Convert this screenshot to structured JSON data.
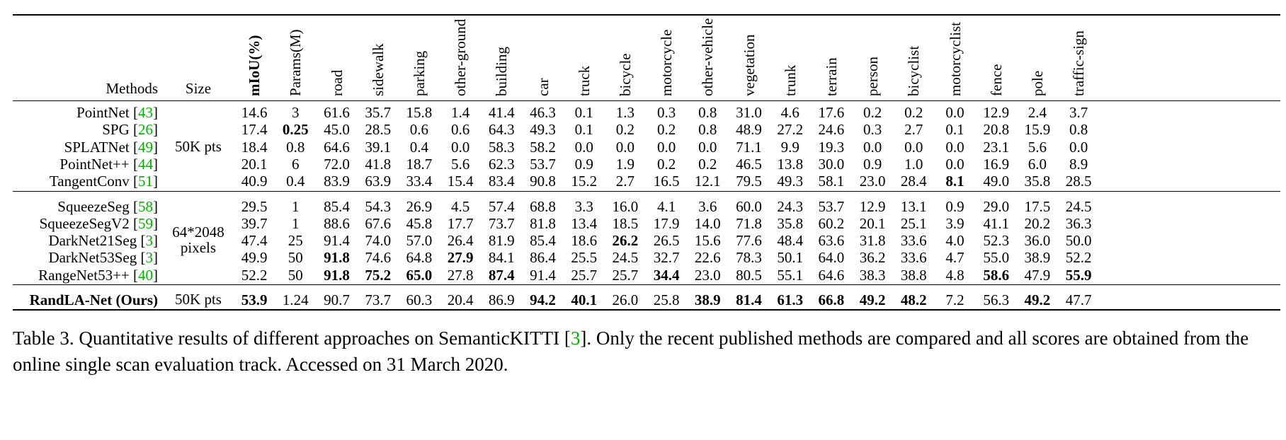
{
  "table": {
    "header": {
      "methods": "Methods",
      "size": "Size",
      "columns": [
        "mIoU(%)",
        "Params(M)",
        "road",
        "sidewalk",
        "parking",
        "other-ground",
        "building",
        "car",
        "truck",
        "bicycle",
        "motorcycle",
        "other-vehicle",
        "vegetation",
        "trunk",
        "terrain",
        "person",
        "bicyclist",
        "motorcyclist",
        "fence",
        "pole",
        "traffic-sign"
      ],
      "bold_columns": [
        0
      ]
    },
    "groups": [
      {
        "size": "50K pts",
        "rows": [
          {
            "name": "PointNet",
            "cite": "43",
            "values": [
              "14.6",
              "3",
              "61.6",
              "35.7",
              "15.8",
              "1.4",
              "41.4",
              "46.3",
              "0.1",
              "1.3",
              "0.3",
              "0.8",
              "31.0",
              "4.6",
              "17.6",
              "0.2",
              "0.2",
              "0.0",
              "12.9",
              "2.4",
              "3.7"
            ],
            "bold": []
          },
          {
            "name": "SPG",
            "cite": "26",
            "values": [
              "17.4",
              "0.25",
              "45.0",
              "28.5",
              "0.6",
              "0.6",
              "64.3",
              "49.3",
              "0.1",
              "0.2",
              "0.2",
              "0.8",
              "48.9",
              "27.2",
              "24.6",
              "0.3",
              "2.7",
              "0.1",
              "20.8",
              "15.9",
              "0.8"
            ],
            "bold": [
              1
            ]
          },
          {
            "name": "SPLATNet",
            "cite": "49",
            "values": [
              "18.4",
              "0.8",
              "64.6",
              "39.1",
              "0.4",
              "0.0",
              "58.3",
              "58.2",
              "0.0",
              "0.0",
              "0.0",
              "0.0",
              "71.1",
              "9.9",
              "19.3",
              "0.0",
              "0.0",
              "0.0",
              "23.1",
              "5.6",
              "0.0"
            ],
            "bold": []
          },
          {
            "name": "PointNet++",
            "cite": "44",
            "values": [
              "20.1",
              "6",
              "72.0",
              "41.8",
              "18.7",
              "5.6",
              "62.3",
              "53.7",
              "0.9",
              "1.9",
              "0.2",
              "0.2",
              "46.5",
              "13.8",
              "30.0",
              "0.9",
              "1.0",
              "0.0",
              "16.9",
              "6.0",
              "8.9"
            ],
            "bold": []
          },
          {
            "name": "TangentConv",
            "cite": "51",
            "values": [
              "40.9",
              "0.4",
              "83.9",
              "63.9",
              "33.4",
              "15.4",
              "83.4",
              "90.8",
              "15.2",
              "2.7",
              "16.5",
              "12.1",
              "79.5",
              "49.3",
              "58.1",
              "23.0",
              "28.4",
              "8.1",
              "49.0",
              "35.8",
              "28.5"
            ],
            "bold": [
              17
            ]
          }
        ]
      },
      {
        "size_line1": "64*2048",
        "size_line2": "pixels",
        "rows": [
          {
            "name": "SqueezeSeg",
            "cite": "58",
            "values": [
              "29.5",
              "1",
              "85.4",
              "54.3",
              "26.9",
              "4.5",
              "57.4",
              "68.8",
              "3.3",
              "16.0",
              "4.1",
              "3.6",
              "60.0",
              "24.3",
              "53.7",
              "12.9",
              "13.1",
              "0.9",
              "29.0",
              "17.5",
              "24.5"
            ],
            "bold": []
          },
          {
            "name": "SqueezeSegV2",
            "cite": "59",
            "values": [
              "39.7",
              "1",
              "88.6",
              "67.6",
              "45.8",
              "17.7",
              "73.7",
              "81.8",
              "13.4",
              "18.5",
              "17.9",
              "14.0",
              "71.8",
              "35.8",
              "60.2",
              "20.1",
              "25.1",
              "3.9",
              "41.1",
              "20.2",
              "36.3"
            ],
            "bold": []
          },
          {
            "name": "DarkNet21Seg",
            "cite": "3",
            "values": [
              "47.4",
              "25",
              "91.4",
              "74.0",
              "57.0",
              "26.4",
              "81.9",
              "85.4",
              "18.6",
              "26.2",
              "26.5",
              "15.6",
              "77.6",
              "48.4",
              "63.6",
              "31.8",
              "33.6",
              "4.0",
              "52.3",
              "36.0",
              "50.0"
            ],
            "bold": [
              9
            ]
          },
          {
            "name": "DarkNet53Seg",
            "cite": "3",
            "values": [
              "49.9",
              "50",
              "91.8",
              "74.6",
              "64.8",
              "27.9",
              "84.1",
              "86.4",
              "25.5",
              "24.5",
              "32.7",
              "22.6",
              "78.3",
              "50.1",
              "64.0",
              "36.2",
              "33.6",
              "4.7",
              "55.0",
              "38.9",
              "52.2"
            ],
            "bold": [
              2,
              5
            ]
          },
          {
            "name": "RangeNet53++",
            "cite": "40",
            "values": [
              "52.2",
              "50",
              "91.8",
              "75.2",
              "65.0",
              "27.8",
              "87.4",
              "91.4",
              "25.7",
              "25.7",
              "34.4",
              "23.0",
              "80.5",
              "55.1",
              "64.6",
              "38.3",
              "38.8",
              "4.8",
              "58.6",
              "47.9",
              "55.9"
            ],
            "bold": [
              2,
              3,
              4,
              6,
              10,
              18,
              20
            ]
          }
        ]
      },
      {
        "size": "50K pts",
        "rows": [
          {
            "name": "RandLA-Net (Ours)",
            "cite": "",
            "name_bold": true,
            "values": [
              "53.9",
              "1.24",
              "90.7",
              "73.7",
              "60.3",
              "20.4",
              "86.9",
              "94.2",
              "40.1",
              "26.0",
              "25.8",
              "38.9",
              "81.4",
              "61.3",
              "66.8",
              "49.2",
              "48.2",
              "7.2",
              "56.3",
              "49.2",
              "47.7"
            ],
            "bold": [
              0,
              7,
              8,
              11,
              12,
              13,
              14,
              15,
              16,
              19
            ]
          }
        ]
      }
    ]
  },
  "caption": {
    "part1": "Table 3. Quantitative results of different approaches on SemanticKITTI [",
    "cite": "3",
    "part2": "]. Only the recent published methods are compared and all scores are obtained from the online single scan evaluation track. Accessed on 31 March 2020."
  }
}
